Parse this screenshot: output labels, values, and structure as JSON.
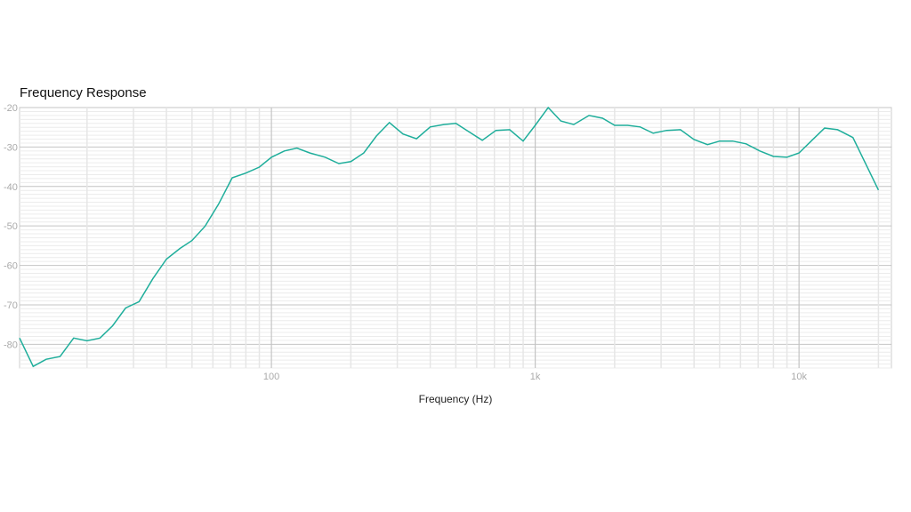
{
  "chart_data": {
    "type": "line",
    "title": "Frequency Response",
    "xlabel": "Frequency (Hz)",
    "ylabel": "",
    "xscale": "log",
    "xlim": [
      11.1,
      22400
    ],
    "ylim": [
      -86,
      -20
    ],
    "grid": true,
    "line_color": "#1fae9b",
    "x_ticks": [
      {
        "value": 100,
        "label": "100"
      },
      {
        "value": 1000,
        "label": "1k"
      },
      {
        "value": 10000,
        "label": "10k"
      }
    ],
    "y_ticks": [
      {
        "value": -20,
        "label": "-20"
      },
      {
        "value": -30,
        "label": "-30"
      },
      {
        "value": -40,
        "label": "-40"
      },
      {
        "value": -50,
        "label": "-50"
      },
      {
        "value": -60,
        "label": "-60"
      },
      {
        "value": -70,
        "label": "-70"
      },
      {
        "value": -80,
        "label": "-80"
      }
    ],
    "x": [
      11.1,
      12.5,
      14,
      15.8,
      17.8,
      20,
      22.4,
      25,
      28,
      31.5,
      35.5,
      40,
      45,
      50,
      56,
      63,
      71,
      80,
      90,
      100,
      112,
      125,
      140,
      160,
      180,
      200,
      224,
      250,
      280,
      315,
      355,
      400,
      450,
      500,
      560,
      630,
      710,
      800,
      900,
      1000,
      1120,
      1250,
      1400,
      1600,
      1800,
      2000,
      2240,
      2500,
      2800,
      3150,
      3550,
      4000,
      4500,
      5000,
      5600,
      6300,
      7100,
      8000,
      9000,
      10000,
      11200,
      12500,
      14000,
      16000,
      20000
    ],
    "y": [
      -78.4,
      -85.6,
      -83.8,
      -83.1,
      -78.4,
      -79.1,
      -78.4,
      -75.3,
      -70.8,
      -69.2,
      -63.4,
      -58.4,
      -55.7,
      -53.7,
      -50.1,
      -44.5,
      -37.8,
      -36.6,
      -35.1,
      -32.6,
      -31.0,
      -30.3,
      -31.5,
      -32.6,
      -34.2,
      -33.7,
      -31.5,
      -27.2,
      -23.8,
      -26.7,
      -27.9,
      -24.9,
      -24.3,
      -24.0,
      -26.1,
      -28.3,
      -25.8,
      -25.6,
      -28.5,
      -24.5,
      -20.0,
      -23.4,
      -24.3,
      -22.0,
      -22.7,
      -24.5,
      -24.5,
      -24.9,
      -26.5,
      -25.8,
      -25.6,
      -28.1,
      -29.4,
      -28.5,
      -28.5,
      -29.2,
      -31.0,
      -32.4,
      -32.6,
      -31.5,
      -28.3,
      -25.2,
      -25.6,
      -27.6,
      -40.9
    ]
  }
}
